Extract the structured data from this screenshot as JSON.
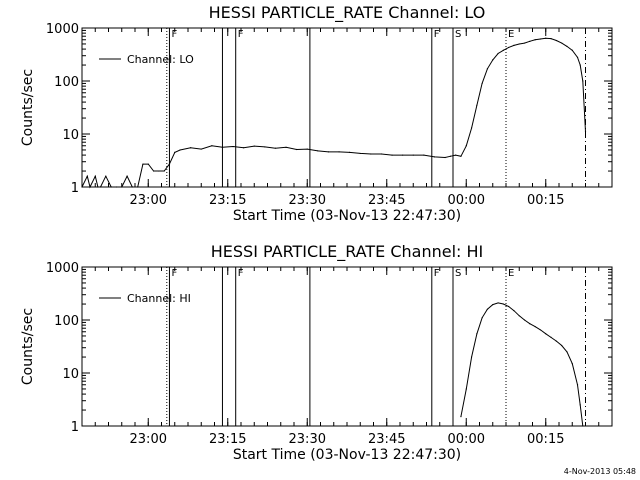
{
  "chart_data": [
    {
      "type": "line",
      "title": "HESSI PARTICLE_RATE Channel: LO",
      "xlabel": "Start Time (03-Nov-13 22:47:30)",
      "ylabel": "Counts/sec",
      "yscale": "log",
      "ylim": [
        1,
        1000
      ],
      "y_ticks": [
        {
          "value": 1,
          "label": "1"
        },
        {
          "value": 10,
          "label": "10"
        },
        {
          "value": 100,
          "label": "100"
        },
        {
          "value": 1000,
          "label": "1000"
        }
      ],
      "xlim": [
        "22:47:30",
        "00:27:30"
      ],
      "x_ticks": [
        {
          "value": "23:00",
          "label": "23:00"
        },
        {
          "value": "23:15",
          "label": "23:15"
        },
        {
          "value": "23:30",
          "label": "23:30"
        },
        {
          "value": "23:45",
          "label": "23:45"
        },
        {
          "value": "00:00",
          "label": "00:00"
        },
        {
          "value": "00:15",
          "label": "00:15"
        }
      ],
      "legend": "top-left",
      "series": [
        {
          "name": "Channel: LO",
          "x": [
            "22:47:30",
            "22:48:30",
            "22:49:00",
            "22:50:00",
            "22:50:30",
            "22:51:00",
            "22:52:00",
            "22:53:00",
            "22:54:00",
            "22:55:00",
            "22:56:00",
            "22:57:00",
            "22:58:00",
            "22:59:00",
            "23:00:00",
            "23:01:00",
            "23:02:00",
            "23:03:00",
            "23:04:00",
            "23:05:00",
            "23:06:00",
            "23:08:00",
            "23:10:00",
            "23:12:00",
            "23:14:00",
            "23:16:00",
            "23:18:00",
            "23:20:00",
            "23:22:00",
            "23:24:00",
            "23:26:00",
            "23:28:00",
            "23:30:00",
            "23:32:00",
            "23:34:00",
            "23:36:00",
            "23:38:00",
            "23:40:00",
            "23:42:00",
            "23:44:00",
            "23:46:00",
            "23:48:00",
            "23:50:00",
            "23:52:00",
            "23:54:00",
            "23:56:00",
            "23:57:00",
            "23:58:00",
            "23:59:00",
            "00:00:00",
            "00:01:00",
            "00:02:00",
            "00:03:00",
            "00:04:00",
            "00:05:00",
            "00:06:00",
            "00:07:00",
            "00:08:00",
            "00:09:00",
            "00:10:00",
            "00:11:00",
            "00:12:00",
            "00:13:00",
            "00:14:00",
            "00:15:00",
            "00:16:00",
            "00:17:00",
            "00:18:00",
            "00:19:00",
            "00:20:00",
            "00:21:00",
            "00:21:30",
            "00:22:00",
            "00:22:30"
          ],
          "values": [
            1,
            1.6,
            1,
            1.6,
            1,
            1,
            1.6,
            1,
            1,
            1,
            1.6,
            1,
            1,
            2.7,
            2.7,
            2,
            2,
            2,
            2.7,
            4.5,
            5,
            5.5,
            5.2,
            6,
            5.6,
            5.8,
            5.5,
            5.9,
            5.7,
            5.4,
            5.6,
            5.1,
            5.2,
            4.8,
            4.6,
            4.6,
            4.5,
            4.3,
            4.2,
            4.2,
            4,
            4,
            4,
            4,
            3.7,
            3.6,
            3.8,
            4,
            3.8,
            6,
            13,
            35,
            90,
            170,
            250,
            330,
            380,
            430,
            470,
            500,
            520,
            560,
            600,
            620,
            640,
            630,
            580,
            520,
            450,
            380,
            280,
            200,
            100,
            11
          ]
        }
      ],
      "markers": [
        {
          "time": "23:03:30",
          "style": "dotted",
          "label": ""
        },
        {
          "time": "23:04:00",
          "style": "solid",
          "label": "F"
        },
        {
          "time": "23:14:00",
          "style": "solid",
          "label": ""
        },
        {
          "time": "23:16:30",
          "style": "solid",
          "label": "F"
        },
        {
          "time": "23:30:30",
          "style": "solid",
          "label": ""
        },
        {
          "time": "23:53:30",
          "style": "solid",
          "label": "F"
        },
        {
          "time": "23:57:30",
          "style": "solid",
          "label": "S"
        },
        {
          "time": "00:07:30",
          "style": "dotted",
          "label": "E"
        },
        {
          "time": "00:22:30",
          "style": "dashdot",
          "label": ""
        }
      ]
    },
    {
      "type": "line",
      "title": "HESSI PARTICLE_RATE Channel: HI",
      "xlabel": "Start Time (03-Nov-13 22:47:30)",
      "ylabel": "Counts/sec",
      "yscale": "log",
      "ylim": [
        1,
        1000
      ],
      "y_ticks": [
        {
          "value": 1,
          "label": "1"
        },
        {
          "value": 10,
          "label": "10"
        },
        {
          "value": 100,
          "label": "100"
        },
        {
          "value": 1000,
          "label": "1000"
        }
      ],
      "xlim": [
        "22:47:30",
        "00:27:30"
      ],
      "x_ticks": [
        {
          "value": "23:00",
          "label": "23:00"
        },
        {
          "value": "23:15",
          "label": "23:15"
        },
        {
          "value": "23:30",
          "label": "23:30"
        },
        {
          "value": "23:45",
          "label": "23:45"
        },
        {
          "value": "00:00",
          "label": "00:00"
        },
        {
          "value": "00:15",
          "label": "00:15"
        }
      ],
      "legend": "top-left",
      "series": [
        {
          "name": "Channel: HI",
          "x": [
            "23:59:00",
            "00:00:00",
            "00:01:00",
            "00:02:00",
            "00:03:00",
            "00:04:00",
            "00:05:00",
            "00:06:00",
            "00:07:00",
            "00:08:00",
            "00:09:00",
            "00:10:00",
            "00:11:00",
            "00:12:00",
            "00:13:00",
            "00:14:00",
            "00:15:00",
            "00:16:00",
            "00:17:00",
            "00:18:00",
            "00:19:00",
            "00:20:00",
            "00:21:00",
            "00:21:30",
            "00:22:00"
          ],
          "values": [
            1.5,
            5,
            20,
            55,
            110,
            160,
            195,
            210,
            200,
            180,
            150,
            120,
            100,
            85,
            75,
            65,
            55,
            47,
            40,
            33,
            25,
            15,
            6,
            2.5,
            1
          ]
        }
      ],
      "markers": [
        {
          "time": "23:03:30",
          "style": "dotted",
          "label": ""
        },
        {
          "time": "23:04:00",
          "style": "solid",
          "label": "F"
        },
        {
          "time": "23:14:00",
          "style": "solid",
          "label": ""
        },
        {
          "time": "23:16:30",
          "style": "solid",
          "label": "F"
        },
        {
          "time": "23:30:30",
          "style": "solid",
          "label": ""
        },
        {
          "time": "23:53:30",
          "style": "solid",
          "label": "F"
        },
        {
          "time": "23:57:30",
          "style": "solid",
          "label": "S"
        },
        {
          "time": "00:07:30",
          "style": "dotted",
          "label": "E"
        },
        {
          "time": "00:22:30",
          "style": "dashdot",
          "label": ""
        }
      ]
    }
  ],
  "footer": {
    "timestamp": "4-Nov-2013 05:48"
  }
}
